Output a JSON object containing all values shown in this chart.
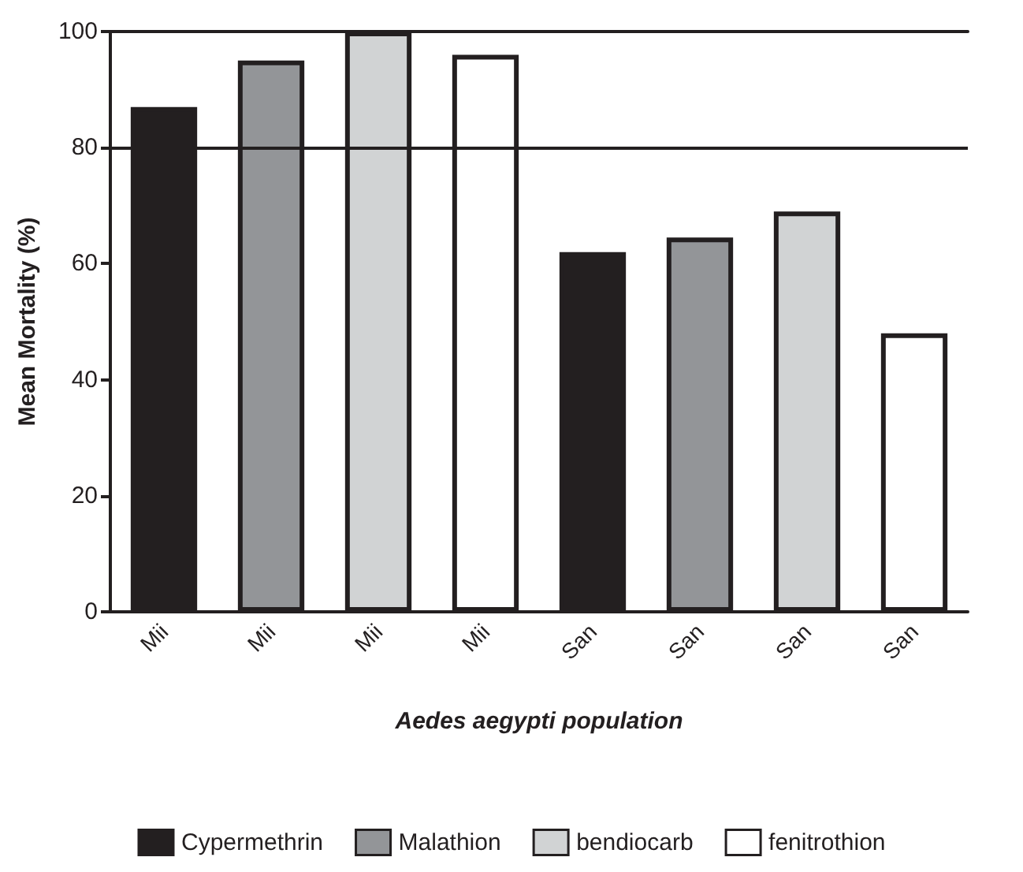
{
  "chart_data": {
    "type": "bar",
    "xlabel": "Aedes aegypti population",
    "ylabel": "Mean Mortality (%)",
    "categories": [
      "Mii",
      "Mii",
      "Mii",
      "Mii",
      "San",
      "San",
      "San",
      "San"
    ],
    "series": [
      {
        "name": "Cypermethrin",
        "color": "#231f20",
        "values": [
          87,
          null,
          null,
          null,
          62,
          null,
          null,
          null
        ]
      },
      {
        "name": "Malathion",
        "color": "#939598",
        "values": [
          null,
          95,
          null,
          null,
          null,
          64.5,
          null,
          null
        ]
      },
      {
        "name": "bendiocarb",
        "color": "#d1d3d4",
        "values": [
          null,
          null,
          100,
          null,
          null,
          null,
          69,
          null
        ]
      },
      {
        "name": "fenitrothion",
        "color": "#ffffff",
        "values": [
          null,
          null,
          null,
          96,
          null,
          null,
          null,
          48
        ]
      }
    ],
    "ylim": [
      0,
      100
    ],
    "yticks": [
      0,
      20,
      40,
      60,
      80,
      100
    ],
    "ref_lines": [
      {
        "axis": "y",
        "value": 80
      }
    ],
    "legend": "bottom",
    "grid": false
  }
}
